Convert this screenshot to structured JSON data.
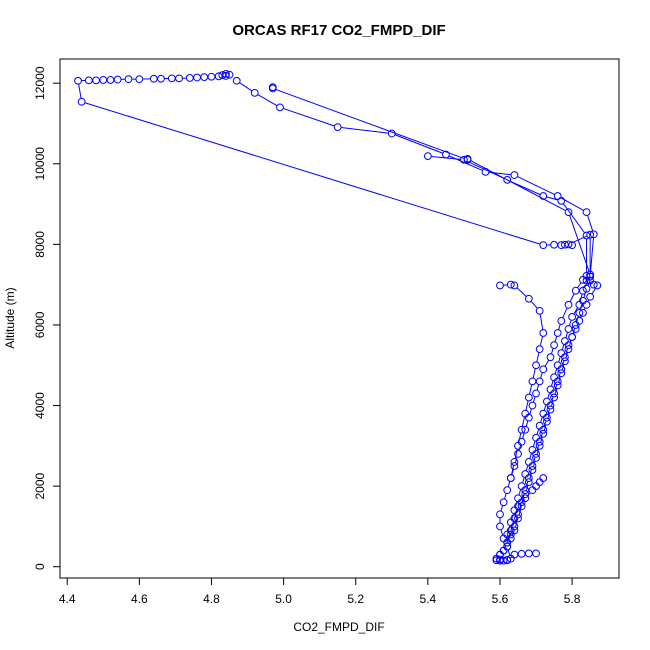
{
  "chart_data": {
    "type": "scatter",
    "title": "ORCAS RF17 CO2_FMPD_DIF",
    "xlabel": "CO2_FMPD_DIF",
    "ylabel": "Altitude (m)",
    "xlim": [
      4.38,
      5.93
    ],
    "ylim": [
      -280,
      12600
    ],
    "xticks": [
      4.4,
      4.6,
      4.8,
      5.0,
      5.2,
      5.4,
      5.6,
      5.8
    ],
    "xtick_labels": [
      "4.4",
      "4.6",
      "4.8",
      "5.0",
      "5.2",
      "5.4",
      "5.6",
      "5.8"
    ],
    "yticks": [
      0,
      2000,
      4000,
      6000,
      8000,
      10000,
      12000
    ],
    "ytick_labels": [
      "0",
      "2000",
      "4000",
      "6000",
      "8000",
      "10000",
      "12000"
    ],
    "grid": false,
    "legend": "none",
    "marker": "open-circle",
    "line_and_points": true,
    "color": "#0000ff",
    "series": [
      {
        "x": [
          4.83,
          4.84,
          4.85,
          4.84,
          4.82,
          4.8,
          4.78,
          4.76,
          4.74,
          4.71,
          4.69,
          4.66,
          4.64,
          4.6,
          4.57,
          4.54,
          4.52,
          4.5,
          4.48,
          4.46,
          4.43,
          4.44,
          5.72,
          5.75,
          5.77,
          5.78,
          5.8,
          5.79,
          5.85,
          5.85,
          5.85,
          5.84,
          5.86,
          5.87,
          5.85,
          5.84,
          5.83,
          5.82,
          5.81,
          5.8,
          5.79,
          5.78,
          5.77,
          5.76,
          5.75,
          5.74,
          5.73,
          5.72,
          5.71,
          5.7,
          5.69,
          5.68,
          5.67,
          5.66,
          5.65,
          5.64,
          5.63,
          5.62,
          5.61,
          5.6,
          5.59,
          5.6,
          5.61,
          5.62
        ],
        "y": [
          12200,
          12230,
          12210,
          12180,
          12170,
          12160,
          12150,
          12140,
          12130,
          12120,
          12120,
          12110,
          12110,
          12100,
          12100,
          12090,
          12080,
          12080,
          12070,
          12070,
          12060,
          11540,
          7980,
          7990,
          7980,
          7990,
          7980,
          8000,
          8240,
          7250,
          7200,
          7100,
          7000,
          6980,
          6700,
          6500,
          6300,
          6100,
          5900,
          5700,
          5500,
          5200,
          4900,
          4600,
          4300,
          4000,
          3700,
          3400,
          3100,
          2800,
          2500,
          2200,
          1900,
          1600,
          1300,
          1000,
          800,
          600,
          400,
          300,
          160,
          150,
          150,
          160
        ]
      },
      {
        "x": [
          4.97,
          4.97,
          5.51,
          5.51,
          5.79,
          5.85,
          5.85,
          5.84,
          5.83,
          5.82,
          5.81,
          5.8,
          5.79,
          5.78,
          5.77,
          5.76,
          5.75,
          5.74,
          5.73,
          5.72,
          5.71,
          5.7,
          5.69,
          5.68,
          5.67,
          5.66,
          5.65,
          5.64,
          5.63,
          5.62,
          5.61,
          5.6,
          5.59,
          5.6,
          5.62,
          5.64,
          5.66,
          5.68,
          5.7
        ],
        "y": [
          11900,
          11870,
          10100,
          10120,
          8800,
          7250,
          7100,
          6900,
          6600,
          6300,
          6000,
          5700,
          5400,
          5100,
          4800,
          4500,
          4200,
          3900,
          3600,
          3300,
          3000,
          2700,
          2400,
          2100,
          1800,
          1500,
          1200,
          900,
          700,
          500,
          400,
          300,
          200,
          180,
          170,
          300,
          320,
          330,
          330
        ]
      },
      {
        "x": [
          4.87,
          4.92,
          4.99,
          5.15,
          5.3,
          5.45,
          5.56,
          5.64,
          5.76,
          5.84,
          5.86,
          5.85,
          5.83,
          5.82,
          5.8,
          5.79,
          5.78,
          5.77,
          5.76,
          5.75,
          5.74,
          5.73,
          5.72,
          5.71,
          5.7,
          5.69,
          5.68,
          5.67,
          5.66,
          5.65,
          5.64,
          5.63,
          5.62,
          5.62,
          5.63
        ],
        "y": [
          12060,
          11760,
          11400,
          10910,
          10750,
          10230,
          9800,
          9720,
          9200,
          8800,
          8250,
          7200,
          6850,
          6500,
          6200,
          5900,
          5600,
          5300,
          5000,
          4700,
          4400,
          4100,
          3800,
          3500,
          3200,
          2900,
          2600,
          2300,
          2000,
          1700,
          1400,
          1100,
          800,
          500,
          200
        ]
      },
      {
        "x": [
          5.4,
          5.5,
          5.62,
          5.72,
          5.77,
          5.84,
          5.84,
          5.83,
          5.81,
          5.79,
          5.77,
          5.76,
          5.75,
          5.74,
          5.72,
          5.71,
          5.7,
          5.69,
          5.68,
          5.67,
          5.66,
          5.65,
          5.64,
          5.63,
          5.62,
          5.61,
          5.6,
          5.6,
          5.61,
          5.62,
          5.63,
          5.64,
          5.65,
          5.67,
          5.69,
          5.7,
          5.71,
          5.72
        ],
        "y": [
          10190,
          10100,
          9600,
          9200,
          9080,
          8220,
          7220,
          7120,
          6850,
          6500,
          6100,
          5800,
          5500,
          5200,
          4900,
          4600,
          4300,
          4000,
          3700,
          3400,
          3100,
          2800,
          2500,
          2200,
          1900,
          1600,
          1300,
          1000,
          700,
          600,
          900,
          1200,
          1500,
          1700,
          1900,
          2000,
          2100,
          2200
        ]
      },
      {
        "x": [
          5.6,
          5.63,
          5.64,
          5.68,
          5.71,
          5.72,
          5.71,
          5.7,
          5.69,
          5.68,
          5.67,
          5.66,
          5.65,
          5.64,
          5.63
        ],
        "y": [
          6980,
          7000,
          6980,
          6650,
          6350,
          5800,
          5400,
          5000,
          4600,
          4200,
          3800,
          3400,
          3000,
          2600,
          2200
        ]
      }
    ]
  }
}
